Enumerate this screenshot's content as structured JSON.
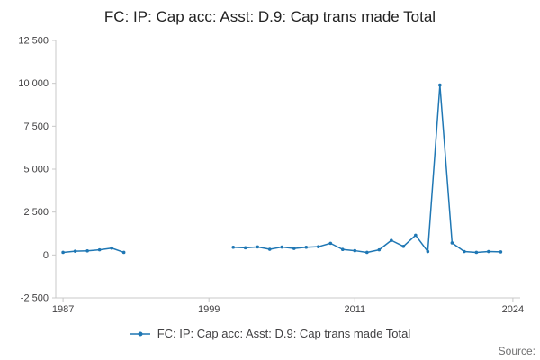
{
  "page": {
    "title": "FC: IP: Cap acc: Asst: D.9: Cap trans made Total",
    "source_label": "Source:"
  },
  "legend": {
    "items": [
      {
        "label": "FC: IP: Cap acc: Asst: D.9: Cap trans made Total",
        "color": "#1f77b4"
      }
    ]
  },
  "style": {
    "axis_color": "#c8c8c8",
    "tick_label_color": "#414042",
    "title_color": "#222222",
    "source_color": "#707071"
  },
  "chart_data": {
    "type": "line",
    "title": "FC: IP: Cap acc: Asst: D.9: Cap trans made Total",
    "xlabel": "",
    "ylabel": "",
    "xlim": [
      1986.4,
      2024.6
    ],
    "ylim": [
      -2500,
      12500
    ],
    "x_ticks": [
      1987,
      1999,
      2011,
      2024
    ],
    "x_tick_labels": [
      "1987",
      "1999",
      "2011",
      "2024"
    ],
    "y_ticks": [
      -2500,
      0,
      2500,
      5000,
      7500,
      10000,
      12500
    ],
    "y_tick_labels": [
      "-2 500",
      "0",
      "2 500",
      "5 000",
      "7 500",
      "10 000",
      "12 500"
    ],
    "grid": false,
    "legend_position": "bottom",
    "series": [
      {
        "name": "FC: IP: Cap acc: Asst: D.9: Cap trans made Total",
        "color": "#1f77b4",
        "points": [
          [
            1987,
            150
          ],
          [
            1988,
            220
          ],
          [
            1989,
            240
          ],
          [
            1990,
            300
          ],
          [
            1991,
            400
          ],
          [
            1992,
            150
          ],
          [
            2001,
            450
          ],
          [
            2002,
            420
          ],
          [
            2003,
            470
          ],
          [
            2004,
            330
          ],
          [
            2005,
            460
          ],
          [
            2006,
            380
          ],
          [
            2007,
            450
          ],
          [
            2008,
            480
          ],
          [
            2009,
            680
          ],
          [
            2010,
            320
          ],
          [
            2011,
            250
          ],
          [
            2012,
            150
          ],
          [
            2013,
            300
          ],
          [
            2014,
            850
          ],
          [
            2015,
            500
          ],
          [
            2016,
            1150
          ],
          [
            2017,
            200
          ],
          [
            2018,
            9900
          ],
          [
            2019,
            700
          ],
          [
            2020,
            200
          ],
          [
            2021,
            150
          ],
          [
            2022,
            200
          ],
          [
            2023,
            180
          ]
        ]
      }
    ]
  }
}
